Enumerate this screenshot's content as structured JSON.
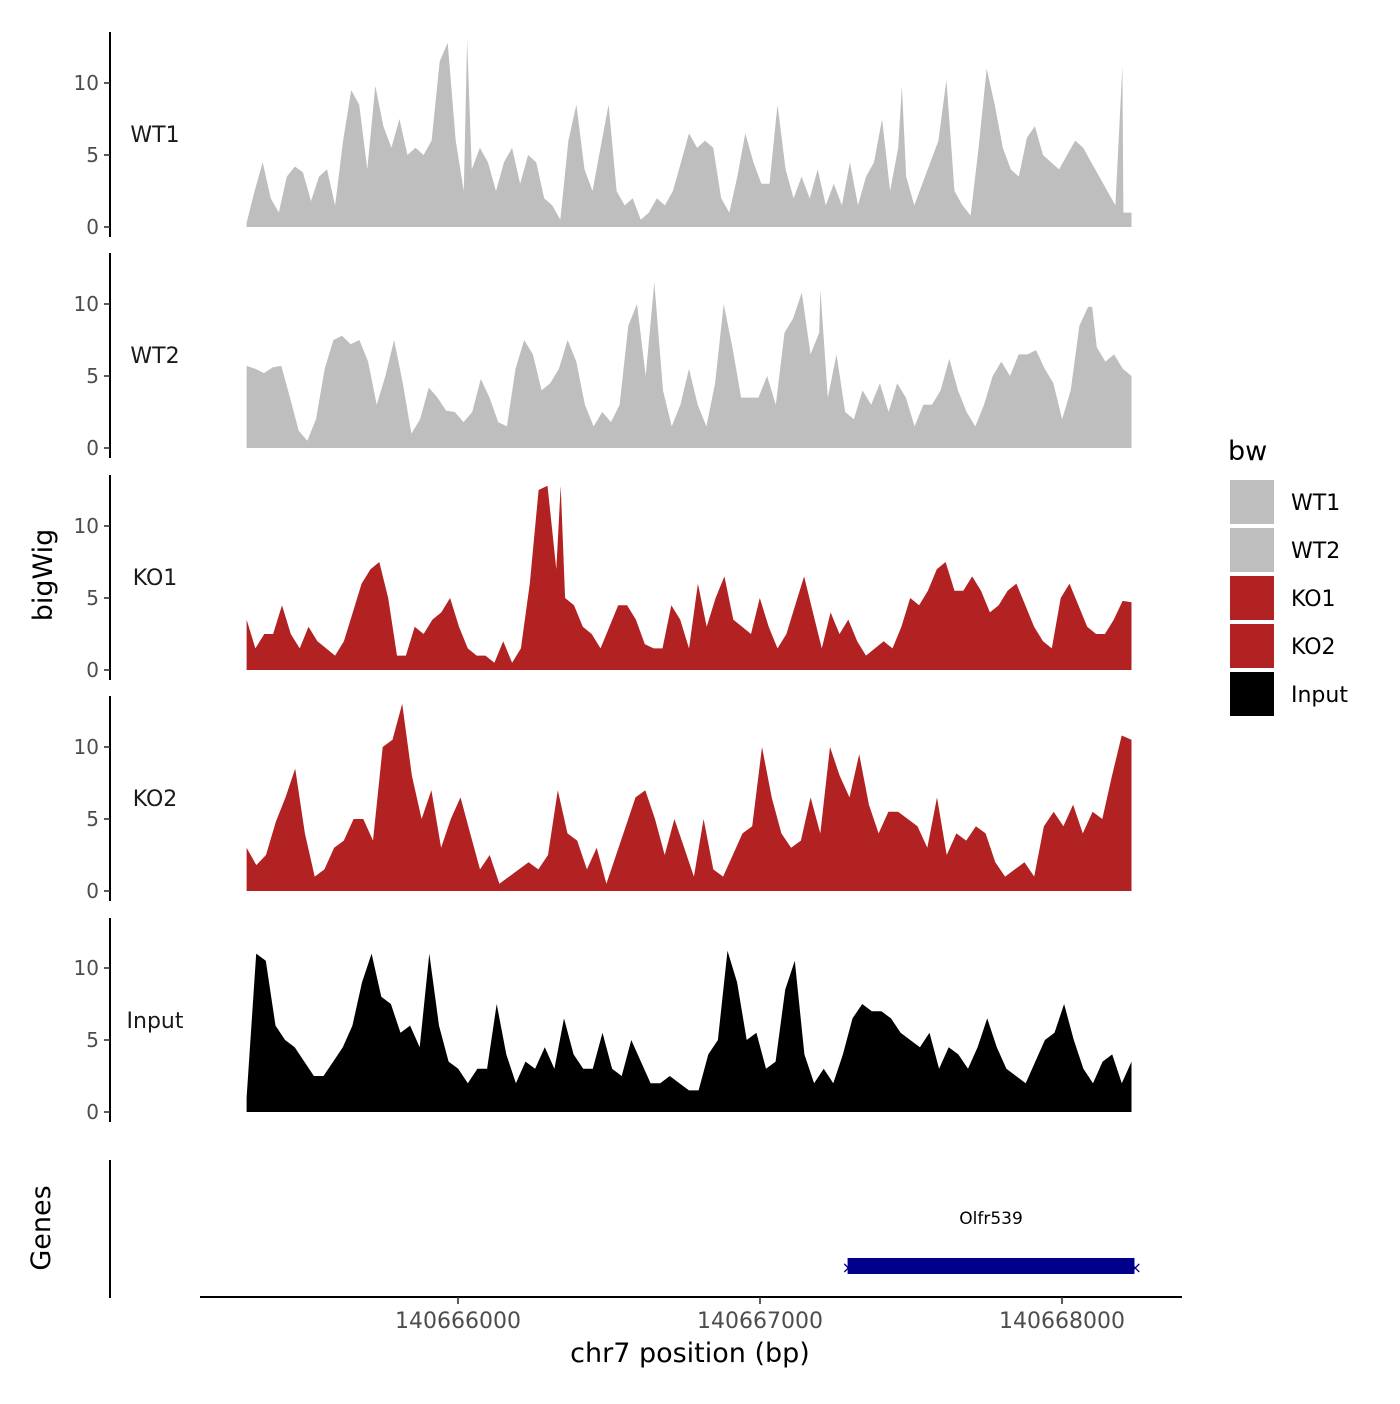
{
  "chart_data": {
    "type": "area",
    "ylabel": "bigWig",
    "xlabel": "chr7 position (bp)",
    "genes_label": "Genes",
    "xlim": [
      140665200,
      140668400
    ],
    "x_ticks": [
      140666000,
      140667000,
      140668000
    ],
    "x_tick_labels": [
      "140666000",
      "140667000",
      "140668000"
    ],
    "ylim": [
      0,
      13.5
    ],
    "y_ticks": [
      0,
      5,
      10
    ],
    "y_tick_labels": [
      "0",
      "5",
      "10"
    ],
    "track_x_range": [
      140665300,
      140668230
    ],
    "legend": {
      "title": "bw",
      "position": "right",
      "entries": [
        {
          "label": "WT1",
          "color": "#bebebe"
        },
        {
          "label": "WT2",
          "color": "#bebebe"
        },
        {
          "label": "KO1",
          "color": "#b22222"
        },
        {
          "label": "KO2",
          "color": "#b22222"
        },
        {
          "label": "Input",
          "color": "#000000"
        }
      ]
    },
    "series": [
      {
        "name": "WT1",
        "color": "#bebebe",
        "values": [
          0.3,
          2.5,
          4.5,
          2.0,
          1.0,
          3.5,
          4.2,
          3.8,
          1.8,
          3.5,
          4.0,
          1.5,
          6.0,
          9.5,
          8.5,
          4.0,
          9.8,
          7.0,
          5.5,
          7.5,
          5.0,
          5.5,
          5.0,
          6.0,
          11.5,
          12.8,
          6.0,
          2.5,
          4.0,
          5.5,
          4.5,
          2.5,
          4.5,
          5.5,
          3.0,
          5.0,
          4.5,
          2.0,
          1.5,
          0.5,
          6.0,
          8.5,
          4.0,
          2.5,
          5.5,
          8.5,
          2.5,
          1.5,
          2.0,
          0.5,
          1.0,
          2.0,
          1.5,
          2.5,
          4.5,
          6.5,
          5.5,
          6.0,
          5.5,
          2.0,
          1.0,
          3.5,
          6.5,
          4.5,
          3.0,
          3.0,
          8.5,
          4.0,
          2.0,
          3.5,
          2.0,
          4.0,
          1.5,
          3.0,
          1.5,
          4.5,
          1.5,
          3.5,
          4.5,
          7.5,
          2.5,
          5.5,
          3.5,
          1.5,
          3.0,
          4.5,
          6.0,
          10.2,
          2.5,
          1.5,
          0.8,
          5.5,
          11.0,
          8.5,
          5.5,
          4.0,
          3.5,
          6.2,
          7.0,
          5.0,
          4.5,
          4.0,
          5.0,
          6.0,
          5.5,
          4.5,
          3.5,
          2.5,
          1.5,
          1.0,
          1.0
        ],
        "peak_overrides": {
          "140666030": 13.0,
          "140667470": 9.8,
          "140668200": 11.2
        }
      },
      {
        "name": "WT2",
        "color": "#bebebe",
        "values": [
          5.7,
          5.5,
          5.2,
          5.6,
          5.7,
          3.5,
          1.2,
          0.5,
          2.0,
          5.5,
          7.5,
          7.8,
          7.2,
          7.5,
          6.0,
          3.0,
          5.0,
          7.5,
          4.5,
          1.0,
          2.0,
          4.2,
          3.5,
          2.6,
          2.5,
          1.8,
          2.5,
          4.8,
          3.5,
          1.8,
          1.5,
          5.5,
          7.5,
          6.5,
          4.0,
          4.5,
          5.5,
          7.5,
          6.0,
          3.0,
          1.5,
          2.5,
          1.8,
          3.0,
          8.5,
          10.0,
          5.0,
          11.5,
          4.0,
          1.5,
          3.0,
          5.5,
          3.0,
          1.5,
          4.5,
          10.0,
          7.0,
          3.5,
          3.5,
          3.5,
          5.0,
          3.0,
          8.0,
          9.0,
          10.8,
          6.5,
          8.0,
          3.5,
          6.5,
          2.5,
          2.0,
          4.0,
          3.0,
          4.5,
          2.5,
          4.5,
          3.5,
          1.5,
          3.0,
          3.0,
          4.0,
          6.2,
          4.0,
          2.5,
          1.5,
          3.0,
          5.0,
          6.0,
          5.0,
          6.5,
          6.5,
          6.8,
          5.5,
          4.5,
          2.0,
          4.0,
          8.5,
          9.8,
          7.0,
          6.0,
          6.5,
          5.5,
          5.0
        ],
        "peak_overrides": {
          "140667200": 11.0,
          "140668100": 9.8
        }
      },
      {
        "name": "KO1",
        "color": "#b22222",
        "values": [
          3.5,
          1.5,
          2.5,
          2.5,
          4.5,
          2.5,
          1.5,
          3.0,
          2.0,
          1.5,
          1.0,
          2.0,
          4.0,
          6.0,
          7.0,
          7.5,
          5.0,
          1.0,
          1.0,
          3.0,
          2.5,
          3.5,
          4.0,
          5.0,
          3.0,
          1.5,
          1.0,
          1.0,
          0.5,
          2.0,
          0.5,
          1.5,
          6.0,
          12.5,
          12.8,
          7.0,
          5.0,
          4.5,
          3.0,
          2.5,
          1.5,
          3.0,
          4.5,
          4.5,
          3.5,
          1.8,
          1.5,
          1.5,
          4.5,
          3.5,
          1.5,
          6.0,
          3.0,
          5.0,
          6.5,
          3.5,
          3.0,
          2.5,
          5.0,
          3.0,
          1.5,
          2.5,
          4.5,
          6.5,
          4.0,
          1.5,
          4.0,
          2.5,
          3.5,
          2.0,
          1.0,
          1.5,
          2.0,
          1.5,
          3.0,
          5.0,
          4.5,
          5.5,
          7.0,
          7.5,
          5.5,
          5.5,
          6.5,
          5.5,
          4.0,
          4.5,
          5.5,
          6.0,
          4.5,
          3.0,
          2.0,
          1.5,
          5.0,
          6.0,
          4.5,
          3.0,
          2.5,
          2.5,
          3.5,
          4.8,
          4.7
        ],
        "peak_overrides": {
          "140666340": 12.8
        }
      },
      {
        "name": "KO2",
        "color": "#b22222",
        "values": [
          3.0,
          1.8,
          2.5,
          4.8,
          6.5,
          8.5,
          4.0,
          1.0,
          1.5,
          3.0,
          3.5,
          5.0,
          5.0,
          3.5,
          10.0,
          10.5,
          13.0,
          8.0,
          5.0,
          7.0,
          3.0,
          5.0,
          6.5,
          4.0,
          1.5,
          2.5,
          0.5,
          1.0,
          1.5,
          2.0,
          1.5,
          2.5,
          7.0,
          4.0,
          3.5,
          1.5,
          3.0,
          0.5,
          2.5,
          4.5,
          6.5,
          7.0,
          5.0,
          2.5,
          5.0,
          3.0,
          1.0,
          5.0,
          1.5,
          1.0,
          2.5,
          4.0,
          4.5,
          10.0,
          6.5,
          4.0,
          3.0,
          3.5,
          6.5,
          4.0,
          10.0,
          8.0,
          6.5,
          9.5,
          6.0,
          4.0,
          5.5,
          5.5,
          5.0,
          4.5,
          3.0,
          6.5,
          2.5,
          4.0,
          3.5,
          4.5,
          4.0,
          2.0,
          1.0,
          1.5,
          2.0,
          1.0,
          4.5,
          5.5,
          4.5,
          6.0,
          4.0,
          5.5,
          5.0,
          8.0,
          10.8,
          10.5
        ],
        "peak_overrides": {}
      },
      {
        "name": "Input",
        "color": "#000000",
        "values": [
          1.0,
          11.0,
          10.5,
          6.0,
          5.0,
          4.5,
          3.5,
          2.5,
          2.5,
          3.5,
          4.5,
          6.0,
          9.0,
          11.0,
          8.0,
          7.5,
          5.5,
          6.0,
          4.5,
          11.0,
          6.0,
          3.5,
          3.0,
          2.0,
          3.0,
          3.0,
          7.5,
          4.0,
          2.0,
          3.5,
          3.0,
          4.5,
          3.0,
          6.5,
          4.0,
          3.0,
          3.0,
          5.5,
          3.0,
          2.5,
          5.0,
          3.5,
          2.0,
          2.0,
          2.5,
          2.0,
          1.5,
          1.5,
          4.0,
          5.0,
          11.2,
          9.0,
          5.0,
          5.5,
          3.0,
          3.5,
          8.5,
          10.5,
          4.0,
          2.0,
          3.0,
          2.0,
          4.0,
          6.5,
          7.5,
          7.0,
          7.0,
          6.5,
          5.5,
          5.0,
          4.5,
          5.5,
          3.0,
          4.5,
          4.0,
          3.0,
          4.5,
          6.5,
          4.5,
          3.0,
          2.5,
          2.0,
          3.5,
          5.0,
          5.5,
          7.5,
          5.0,
          3.0,
          2.0,
          3.5,
          4.0,
          2.0,
          3.5
        ],
        "peak_overrides": {}
      }
    ],
    "genes": [
      {
        "name": "Olfr539",
        "start": 140667290,
        "end": 140668240,
        "strand": "-",
        "color": "#00008b"
      }
    ]
  }
}
